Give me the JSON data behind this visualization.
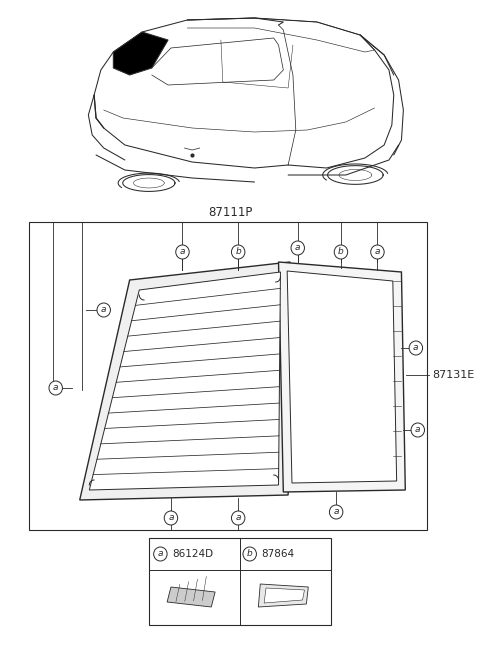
{
  "bg_color": "#ffffff",
  "line_color": "#2a2a2a",
  "title_part_main": "87111P",
  "title_part_side": "87131E",
  "legend_a_code": "86124D",
  "legend_b_code": "87864",
  "fig_width": 4.8,
  "fig_height": 6.55,
  "dpi": 100
}
